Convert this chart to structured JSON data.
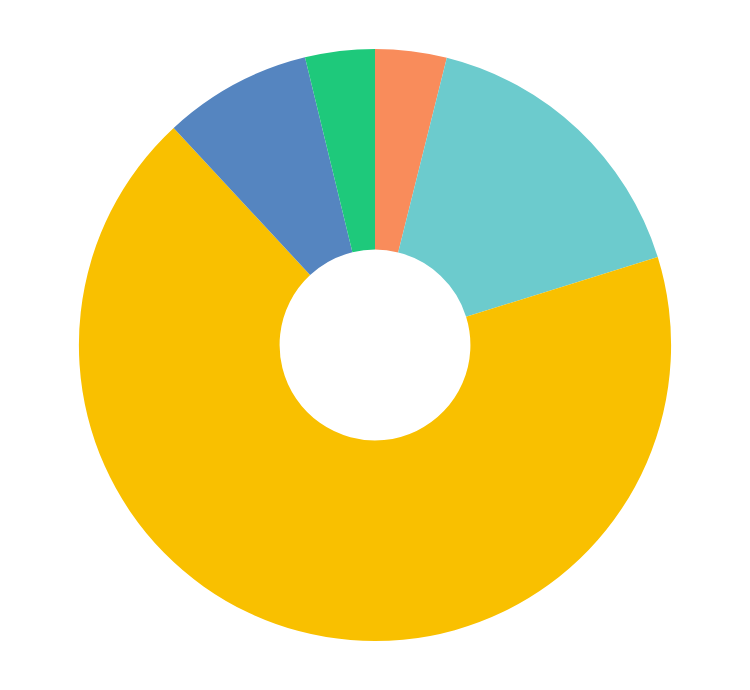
{
  "chart_data": {
    "type": "donut",
    "categories": [
      null,
      null,
      null,
      null,
      null
    ],
    "values": [
      3.9,
      16.3,
      67.9,
      8.1,
      3.8
    ],
    "colors": [
      "#f98c5b",
      "#6ccbcd",
      "#f9c000",
      "#5585c0",
      "#1ec97b"
    ]
  }
}
